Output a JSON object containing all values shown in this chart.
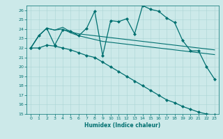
{
  "xlabel": "Humidex (Indice chaleur)",
  "xlim": [
    -0.5,
    23.5
  ],
  "ylim": [
    15,
    26.5
  ],
  "yticks": [
    15,
    16,
    17,
    18,
    19,
    20,
    21,
    22,
    23,
    24,
    25,
    26
  ],
  "xticks": [
    0,
    1,
    2,
    3,
    4,
    5,
    6,
    7,
    8,
    9,
    10,
    11,
    12,
    13,
    14,
    15,
    16,
    17,
    18,
    19,
    20,
    21,
    22,
    23
  ],
  "bg_color": "#cce9e9",
  "grid_color": "#aad4d4",
  "line_color": "#007070",
  "lines": [
    {
      "x": [
        0,
        1,
        2,
        3,
        4,
        5,
        6,
        7,
        8,
        9,
        10,
        11,
        12,
        13,
        14,
        15,
        16,
        17,
        18,
        19,
        20,
        21,
        22,
        23
      ],
      "y": [
        22.0,
        23.3,
        24.1,
        22.3,
        23.9,
        23.8,
        23.3,
        24.1,
        25.9,
        21.2,
        24.9,
        24.8,
        25.1,
        23.5,
        26.5,
        26.1,
        25.9,
        25.2,
        24.7,
        22.8,
        21.7,
        21.7,
        20.0,
        18.7
      ],
      "marker": "D",
      "markersize": 2.0,
      "lw": 0.9
    },
    {
      "x": [
        0,
        1,
        2,
        3,
        4,
        5,
        6,
        7,
        8,
        9,
        10,
        11,
        12,
        13,
        14,
        15,
        16,
        17,
        18,
        19,
        20,
        21,
        22,
        23
      ],
      "y": [
        22.0,
        23.3,
        24.1,
        23.9,
        24.2,
        23.7,
        23.5,
        23.4,
        23.3,
        23.2,
        23.1,
        23.0,
        22.9,
        22.8,
        22.7,
        22.6,
        22.5,
        22.4,
        22.3,
        22.2,
        22.1,
        22.0,
        21.9,
        21.8
      ],
      "marker": null,
      "lw": 0.8
    },
    {
      "x": [
        0,
        1,
        2,
        3,
        4,
        5,
        6,
        7,
        8,
        9,
        10,
        11,
        12,
        13,
        14,
        15,
        16,
        17,
        18,
        19,
        20,
        21,
        22,
        23
      ],
      "y": [
        22.0,
        23.3,
        24.1,
        23.9,
        24.0,
        23.6,
        23.3,
        23.1,
        22.9,
        22.7,
        22.6,
        22.5,
        22.4,
        22.3,
        22.2,
        22.1,
        22.0,
        21.9,
        21.8,
        21.7,
        21.6,
        21.5,
        21.4,
        21.3
      ],
      "marker": null,
      "lw": 0.8
    },
    {
      "x": [
        0,
        1,
        2,
        3,
        4,
        5,
        6,
        7,
        8,
        9,
        10,
        11,
        12,
        13,
        14,
        15,
        16,
        17,
        18,
        19,
        20,
        21,
        22,
        23
      ],
      "y": [
        22.0,
        22.0,
        22.3,
        22.2,
        22.0,
        21.8,
        21.5,
        21.2,
        21.0,
        20.5,
        20.0,
        19.5,
        19.0,
        18.5,
        18.0,
        17.5,
        17.0,
        16.5,
        16.2,
        15.8,
        15.5,
        15.2,
        15.0,
        14.9
      ],
      "marker": "D",
      "markersize": 2.0,
      "lw": 0.9
    }
  ]
}
